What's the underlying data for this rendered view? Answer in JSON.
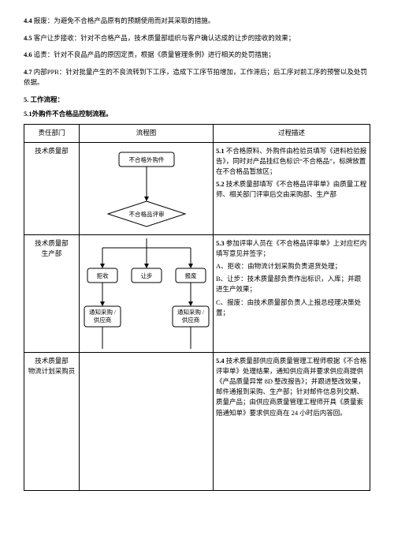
{
  "defs": [
    {
      "num": "4.4",
      "label": "报废：",
      "text": "为避免不合格产品原有的预期使用而对其采取的措施。"
    },
    {
      "num": "4.5",
      "label": "客户让步接收：",
      "text": "针对不合格产品，技术质量部组织与客户确认达成的让步的接收的效果；"
    },
    {
      "num": "4.6",
      "label": "追责：",
      "text": "针对不良品产品的原因定责，根据《质量管理条例》进行相关的处罚措施；"
    },
    {
      "num": "4.7",
      "label": "内部PPR：",
      "text": "针对批量产生的不良流转到下工序，造成下工序节拍增加，工作滞后；后工序对前工序的预警以及处罚依据。"
    }
  ],
  "section5": "5. 工作流程：",
  "section51": "5.1外购件不合格品控制流程。",
  "colHeaders": {
    "dept": "责任部门",
    "flow": "流程图",
    "desc": "过程描述"
  },
  "rows": [
    {
      "dept": "技术质量部",
      "desc": [
        {
          "num": "5.1",
          "text": "不合格原料、外购件由检验员填写《进料检验报告》，同时对产品挂红色标识“不合格品”，标牌放置在不合格品暂放区；"
        },
        {
          "num": "5.2",
          "text": "技术质量部填写《不合格品评审单》由质量工程师、相关部门评审后交由采购部、生产部"
        }
      ]
    },
    {
      "dept": "技术质量部\n生产部",
      "desc": [
        {
          "num": "5.3",
          "text": "参加评审人员在《不合格品评审单》上对应栏内填写意见并签字；"
        },
        {
          "num": "",
          "label": "A、拒收：",
          "text": "由物流计划采购负责退货处理；"
        },
        {
          "num": "",
          "label": "B、让步：",
          "text": "技术质量部负责作出标识，入库；并跟进生产效果；"
        },
        {
          "num": "",
          "label": "C、报废：",
          "text": "由技术质量部负责人上报总经理决策处置；"
        }
      ]
    },
    {
      "dept": "技术质量部\n物流计划采购员",
      "desc": [
        {
          "num": "5.4",
          "text": "技术质量部供应商质量管理工程师根据《不合格评审单》处理结果，通知供应商并要求供应商提供《产品质量异常 8D 整改报告》；并跟进整改效果，邮件通报到采购、生产部；针对邮件信息列交期、质量产品；由供应商质量管理工程师开具《质量索赔通知单》要求供应商在 24 小时后内答回。"
        }
      ]
    }
  ],
  "flow": {
    "box1": "不合格外购件",
    "diamond": "不合格品评审",
    "b_reject": "拒收",
    "b_concede": "让步",
    "b_scrap": "报废",
    "notify1": "通知采购 /\n供应商",
    "notify2": "通知采购 /\n供应商"
  },
  "style": {
    "stroke": "#000000",
    "boxFill": "#ffffff",
    "fontSize": 7.5
  }
}
